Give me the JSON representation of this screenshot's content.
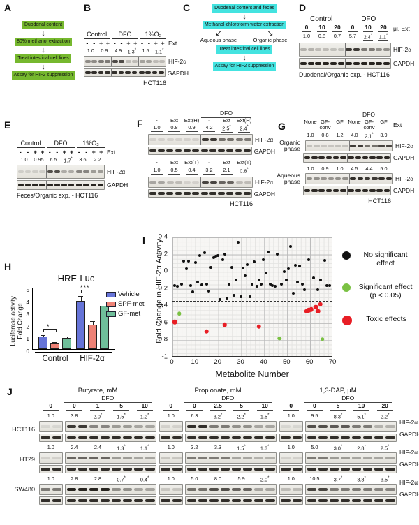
{
  "colors": {
    "green_box": "#76b82e",
    "cyan_box": "#44e3e0",
    "bar_blue": "#6674d8",
    "bar_red": "#ee8276",
    "bar_green": "#6fbf9a",
    "dot_black": "#111111",
    "dot_green": "#7ac143",
    "dot_red": "#e81e25"
  },
  "panelA": {
    "label": "A",
    "steps": [
      "Duodenal content",
      "80% methanol extraction",
      "Treat intestinal cell lines",
      "Assay for HIF2 suppression"
    ]
  },
  "panelB": {
    "label": "B",
    "groups": [
      "Control",
      "DFO",
      "1%O₂"
    ],
    "signs": [
      "-",
      "-",
      "+",
      "+",
      "-",
      "-",
      "+",
      "+",
      "-",
      "-",
      "+",
      "+"
    ],
    "ext_label": "Ext",
    "numbers": [
      "1.0",
      "0.9",
      "4.9",
      "1.3*",
      "1.5",
      "1.1*"
    ],
    "hif_label": "HIF-2α",
    "gapdh_label": "GAPDH",
    "cell": "HCT116"
  },
  "panelC": {
    "label": "C",
    "step1": "Duodenal content and feces",
    "step2": "Methanol-chloroform-water extraction",
    "branches": [
      "Aqueous phase",
      "Organic phase"
    ],
    "step3": "Treat intestinal cell lines",
    "step4": "Assay for HIF2 suppression"
  },
  "panelD": {
    "label": "D",
    "groups": [
      "Control",
      "DFO"
    ],
    "doses": [
      "0",
      "10",
      "20",
      "0",
      "10",
      "20"
    ],
    "unit_label": "μl, Ext",
    "numbers": [
      "1.0",
      "0.8",
      "0.7",
      "5.7",
      "2.4*",
      "1.1*"
    ],
    "hif_label": "HIF-2α",
    "gapdh_label": "GAPDH",
    "caption": "Duodenal/Organic exp. - HCT116"
  },
  "panelE": {
    "label": "E",
    "groups": [
      "Control",
      "DFO",
      "1%O₂"
    ],
    "signs": [
      "-",
      "-",
      "+",
      "+",
      "-",
      "-",
      "+",
      "+",
      "-",
      "-",
      "+",
      "+"
    ],
    "ext_label": "Ext",
    "numbers": [
      "1.0",
      "0.95",
      "6.5",
      "1.7*",
      "3.6",
      "2.2"
    ],
    "hif_label": "HIF-2α",
    "gapdh_label": "GAPDH",
    "caption": "Feces/Organic exp. - HCT116"
  },
  "panelF": {
    "label": "F",
    "dfo": "DFO",
    "top": {
      "labels": [
        "-",
        "Ext",
        "Ext(H)",
        "-",
        "Ext",
        "Ext(H)"
      ],
      "numbers": [
        "1.0",
        "0.8",
        "0.9",
        "4.2",
        "2.5*",
        "2.4*"
      ]
    },
    "bottom": {
      "labels": [
        "-",
        "Ext",
        "Ext(T)",
        "-",
        "Ext",
        "Ext(T)"
      ],
      "numbers": [
        "1.0",
        "0.5",
        "0.4",
        "3.2",
        "2.1",
        "0.8*"
      ]
    },
    "hif_label": "HIF-2α",
    "gapdh_label": "GAPDH",
    "cell": "HCT116"
  },
  "panelG": {
    "label": "G",
    "dfo": "DFO",
    "labels": [
      "None",
      "GF-conv",
      "GF",
      "None",
      "GF-conv",
      "GF"
    ],
    "ext_label": "Ext",
    "organic": {
      "name": "Organic phase",
      "numbers": [
        "1.0",
        "0.8",
        "1.2",
        "4.0",
        "2.1*",
        "3.9"
      ]
    },
    "aqueous": {
      "name": "Aqueous phase",
      "numbers": [
        "1.0",
        "0.9",
        "1.0",
        "4.5",
        "4.4",
        "5.0"
      ]
    },
    "hif_label": "HIF-2α",
    "gapdh_label": "GAPDH",
    "cell": "HCT116"
  },
  "panelH": {
    "label": "H",
    "title": "HRE-Luc",
    "ylabel1": "Luciferase activity",
    "ylabel2": "Fold Change"
  },
  "panelI": {
    "label": "I"
  },
  "panelJ": {
    "label": "J",
    "rows": [
      "HCT116",
      "HT29",
      "SW480"
    ],
    "dfo": "DFO",
    "hif_label": "HIF-2α",
    "gapdh_label": "GAPDH",
    "cols": [
      {
        "title": "Butyrate, mM",
        "doses": [
          "0",
          "0",
          "1",
          "5",
          "10"
        ],
        "numbers": {
          "HCT116": [
            "1.0",
            "3.8",
            "2.0*",
            "1.5*",
            "1.2*"
          ],
          "HT29": [
            "1.0",
            "2.4",
            "2.4",
            "1.3*",
            "1.1*"
          ],
          "SW480": [
            "1.0",
            "2.8",
            "2.8",
            "0.7*",
            "0.4*"
          ]
        }
      },
      {
        "title": "Propionate, mM",
        "doses": [
          "0",
          "0",
          "2.5",
          "5",
          "10"
        ],
        "numbers": {
          "HCT116": [
            "1.0",
            "6.3",
            "3.2*",
            "2.2*",
            "1.5*"
          ],
          "HT29": [
            "1.0",
            "3.2",
            "3.3",
            "1.5*",
            "1.3*"
          ],
          "SW480": [
            "1.0",
            "5.0",
            "8.0",
            "5.9",
            "2.0*"
          ]
        }
      },
      {
        "title": "1,3-DAP, μM",
        "doses": [
          "0",
          "0",
          "5",
          "10",
          "20"
        ],
        "numbers": {
          "HCT116": [
            "1.0",
            "9.5",
            "8.3*",
            "5.1*",
            "2.2*"
          ],
          "HT29": [
            "1.0",
            "5.0",
            "3.0*",
            "2.8*",
            "2.5*"
          ],
          "SW480": [
            "1.0",
            "10.5",
            "3.7*",
            "3.8*",
            "3.5*"
          ]
        }
      }
    ]
  },
  "blots": {
    "B_hif": [
      0.42,
      0.5,
      0.72,
      0.2,
      0.32,
      0.2
    ],
    "B_gapdh": [
      0.85,
      0.85,
      0.85,
      0.85,
      0.85,
      0.85
    ],
    "D_hif": [
      0.25,
      0.2,
      0.18,
      0.8,
      0.5,
      0.4
    ],
    "D_gapdh": [
      0.9,
      0.9,
      0.9,
      0.9,
      0.9,
      0.9
    ],
    "E_hif": [
      0.12,
      0.12,
      0.7,
      0.28,
      0.45,
      0.35
    ],
    "E_gapdh": [
      0.9,
      0.9,
      0.9,
      0.9,
      0.9,
      0.9
    ],
    "Ftop_hif": [
      0.1,
      0.1,
      0.1,
      0.8,
      0.55,
      0.5
    ],
    "Ftop_gapdh": [
      0.85,
      0.85,
      0.85,
      0.85,
      0.85,
      0.85
    ],
    "Fbot_hif": [
      0.3,
      0.2,
      0.1,
      0.75,
      0.6,
      0.2
    ],
    "Fbot_gapdh": [
      0.85,
      0.85,
      0.85,
      0.85,
      0.85,
      0.85
    ],
    "Gorg_hif": [
      0.18,
      0.16,
      0.18,
      0.8,
      0.55,
      0.75
    ],
    "Gorg_gapdh": [
      0.88,
      0.88,
      0.88,
      0.88,
      0.88,
      0.88
    ],
    "Gaq_hif": [
      0.4,
      0.38,
      0.4,
      0.85,
      0.8,
      0.85
    ],
    "Gaq_gapdh": [
      0.88,
      0.88,
      0.88,
      0.88,
      0.88,
      0.88
    ],
    "J": {
      "b_HCT116": [
        [
          0.08
        ],
        [
          0.8,
          0.45,
          0.35,
          0.3
        ]
      ],
      "b_HT29": [
        [
          0.1
        ],
        [
          0.6,
          0.6,
          0.35,
          0.3
        ]
      ],
      "b_SW480": [
        [
          0.5
        ],
        [
          0.9,
          0.9,
          0.4,
          0.3
        ]
      ],
      "p_HCT116": [
        [
          0.1
        ],
        [
          0.85,
          0.5,
          0.4,
          0.3
        ]
      ],
      "p_HT29": [
        [
          0.15
        ],
        [
          0.5,
          0.5,
          0.3,
          0.25
        ]
      ],
      "p_SW480": [
        [
          0.15
        ],
        [
          0.55,
          0.7,
          0.6,
          0.3
        ]
      ],
      "d_HCT116": [
        [
          0.08
        ],
        [
          0.7,
          0.65,
          0.5,
          0.25
        ]
      ],
      "d_HT29": [
        [
          0.1
        ],
        [
          0.5,
          0.35,
          0.3,
          0.3
        ]
      ],
      "d_SW480": [
        [
          0.2
        ],
        [
          0.75,
          0.5,
          0.5,
          0.45
        ]
      ],
      "gapdh_left": [
        0.85
      ],
      "gapdh_right": [
        0.85,
        0.85,
        0.85,
        0.85
      ]
    }
  },
  "chart_data": [
    {
      "type": "bar",
      "title": "HRE-Luc",
      "categories": [
        "Control",
        "HIF-2α"
      ],
      "ylabel": "Luciferase activity Fold Change",
      "ylim": [
        0,
        5
      ],
      "yticks": [
        0,
        1,
        2,
        3,
        4,
        5
      ],
      "legend_position": "right",
      "series": [
        {
          "name": "Vehicle",
          "color": "#6674d8",
          "values": [
            1.0,
            3.9
          ],
          "errors": [
            0.1,
            0.35
          ]
        },
        {
          "name": "SPF-met",
          "color": "#ee8276",
          "values": [
            0.45,
            2.0
          ],
          "errors": [
            0.06,
            0.22
          ]
        },
        {
          "name": "GF-met",
          "color": "#6fbf9a",
          "values": [
            0.9,
            3.55
          ],
          "errors": [
            0.06,
            0.08
          ]
        }
      ],
      "significance": [
        {
          "category": "Control",
          "between": [
            "Vehicle",
            "SPF-met"
          ],
          "label": "*"
        },
        {
          "category": "HIF-2α",
          "between": [
            "Vehicle",
            "SPF-met"
          ],
          "label": "***"
        }
      ]
    },
    {
      "type": "scatter",
      "xlabel": "Metabolite Number",
      "ylabel": "Fold Change in HIF-2α Activity",
      "xlim": [
        0,
        70
      ],
      "ylim": [
        -1,
        0.4
      ],
      "xticks": [
        0,
        10,
        20,
        30,
        40,
        50,
        60,
        70
      ],
      "yticks": [
        0.4,
        0.2,
        0,
        -0.2,
        -0.4,
        -0.6,
        -0.8,
        -1
      ],
      "grid": true,
      "threshold_line": -0.35,
      "legend_position": "right",
      "series": [
        {
          "name": "No significant effect",
          "color": "#111111",
          "points": [
            [
              1,
              -0.17
            ],
            [
              2,
              -0.18
            ],
            [
              4,
              -0.15
            ],
            [
              5,
              0.12
            ],
            [
              6,
              0.03
            ],
            [
              7,
              0.12
            ],
            [
              8,
              -0.17
            ],
            [
              9,
              -0.24
            ],
            [
              10,
              0.1
            ],
            [
              11,
              -0.13
            ],
            [
              12,
              0.19
            ],
            [
              13,
              -0.16
            ],
            [
              14,
              0.22
            ],
            [
              15,
              -0.15
            ],
            [
              16,
              -0.23
            ],
            [
              17,
              0.05
            ],
            [
              18,
              0.16
            ],
            [
              19,
              0.18
            ],
            [
              20,
              0.19
            ],
            [
              21,
              -0.33
            ],
            [
              22,
              0.14
            ],
            [
              23,
              0.2
            ],
            [
              24,
              -0.32
            ],
            [
              25,
              -0.15
            ],
            [
              26,
              0.05
            ],
            [
              27,
              -0.28
            ],
            [
              28,
              -0.1
            ],
            [
              29,
              0.34
            ],
            [
              30,
              -0.3
            ],
            [
              31,
              0.04
            ],
            [
              32,
              -0.05
            ],
            [
              33,
              0.08
            ],
            [
              34,
              -0.3
            ],
            [
              35,
              -0.15
            ],
            [
              36,
              0.11
            ],
            [
              37,
              -0.18
            ],
            [
              38,
              -0.1
            ],
            [
              39,
              -0.15
            ],
            [
              40,
              0.14
            ],
            [
              41,
              -0.02
            ],
            [
              42,
              0.23
            ],
            [
              43,
              -0.15
            ],
            [
              44,
              -0.17
            ],
            [
              45,
              -0.18
            ],
            [
              46,
              0.2
            ],
            [
              48,
              -0.15
            ],
            [
              49,
              0
            ],
            [
              50,
              -0.1
            ],
            [
              51,
              0.03
            ],
            [
              52,
              0.29
            ],
            [
              53,
              -0.26
            ],
            [
              54,
              0.07
            ],
            [
              55,
              -0.13
            ],
            [
              56,
              0.06
            ],
            [
              57,
              -0.15
            ],
            [
              58,
              -0.22
            ],
            [
              60,
              0.14
            ],
            [
              62,
              -0.08
            ],
            [
              64,
              -0.22
            ],
            [
              65,
              -0.1
            ],
            [
              67,
              0.13
            ],
            [
              68,
              -0.17
            ],
            [
              69,
              -0.17
            ]
          ]
        },
        {
          "name": "Significant effect (p < 0.05)",
          "color": "#7ac143",
          "points": [
            [
              3,
              -0.5
            ],
            [
              47,
              -0.79
            ],
            [
              66,
              -0.8
            ]
          ]
        },
        {
          "name": "Toxic effects",
          "color": "#e81e25",
          "points": [
            [
              1,
              -0.6
            ],
            [
              15,
              -0.71
            ],
            [
              23,
              -0.63
            ],
            [
              38,
              -0.65
            ],
            [
              59,
              -0.47
            ],
            [
              60,
              -0.46
            ],
            [
              61,
              -0.45
            ],
            [
              63,
              -0.42
            ],
            [
              64,
              -0.47
            ],
            [
              65,
              -0.39
            ]
          ]
        }
      ]
    }
  ]
}
